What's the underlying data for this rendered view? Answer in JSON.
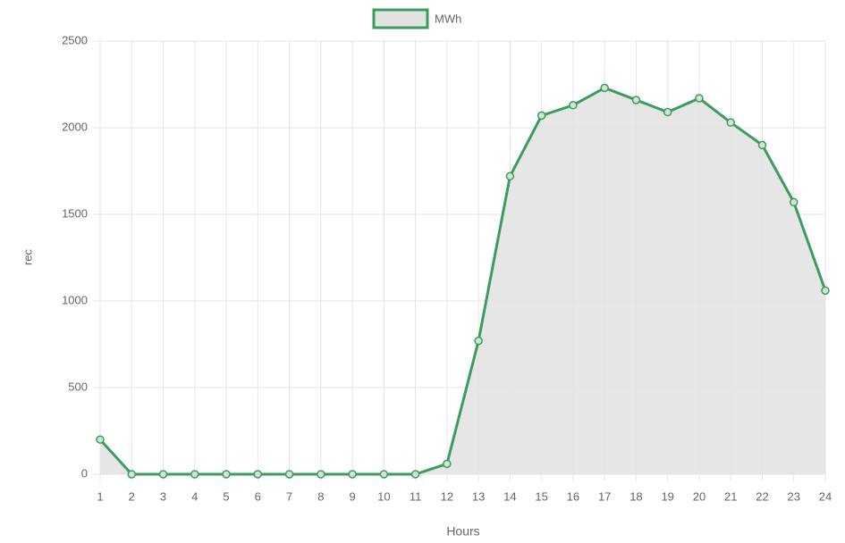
{
  "chart_data": {
    "type": "line",
    "x_label": "Hours",
    "y_label": "rec",
    "categories": [
      "1",
      "2",
      "3",
      "4",
      "5",
      "6",
      "7",
      "8",
      "9",
      "10",
      "11",
      "12",
      "13",
      "14",
      "15",
      "16",
      "17",
      "18",
      "19",
      "20",
      "21",
      "22",
      "23",
      "24"
    ],
    "series": [
      {
        "name": "MWh",
        "color": "#3c9c5e",
        "fill": "#e2e2e2",
        "values": [
          200,
          0,
          0,
          0,
          0,
          0,
          0,
          0,
          0,
          0,
          0,
          60,
          770,
          1720,
          2070,
          2130,
          2230,
          2160,
          2090,
          2170,
          2030,
          1900,
          1570,
          1060
        ]
      }
    ],
    "ylim": [
      0,
      2500
    ],
    "yticks": [
      0,
      500,
      1000,
      1500,
      2000,
      2500
    ],
    "grid": true,
    "legend": "top"
  }
}
